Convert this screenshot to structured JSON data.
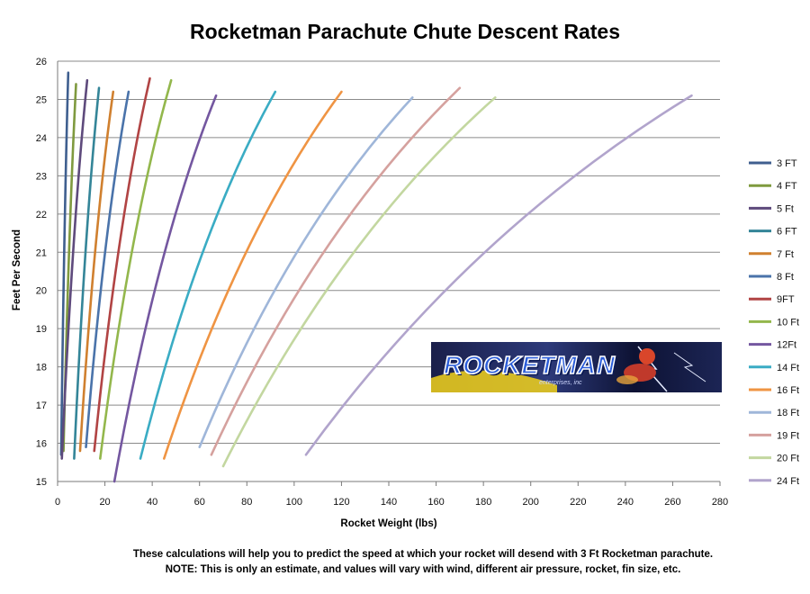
{
  "chart_data": {
    "type": "line",
    "title": "Rocketman Parachute Chute Descent Rates",
    "xlabel": "Rocket Weight (lbs)",
    "ylabel": "Feet Per Second",
    "xlim": [
      0,
      280
    ],
    "ylim": [
      15,
      26
    ],
    "xticks": [
      0,
      20,
      40,
      60,
      80,
      100,
      120,
      140,
      160,
      180,
      200,
      220,
      240,
      260,
      280
    ],
    "yticks": [
      15,
      16,
      17,
      18,
      19,
      20,
      21,
      22,
      23,
      24,
      25,
      26
    ],
    "grid": "horizontal",
    "legend_position": "right",
    "series": [
      {
        "name": "3 FT",
        "color": "#3f5f8f",
        "x": [
          1.5,
          4.5
        ],
        "y": [
          15.7,
          25.7
        ]
      },
      {
        "name": "4 FT",
        "color": "#7f9a3f",
        "x": [
          2.5,
          7.8
        ],
        "y": [
          15.8,
          25.4
        ]
      },
      {
        "name": "5 Ft",
        "color": "#5e4a7c",
        "x": [
          1.8,
          12.5
        ],
        "y": [
          15.6,
          25.5
        ]
      },
      {
        "name": "6 FT",
        "color": "#348598",
        "x": [
          7,
          17.5
        ],
        "y": [
          15.6,
          25.3
        ]
      },
      {
        "name": "7 Ft",
        "color": "#d0802f",
        "x": [
          9.5,
          23.5
        ],
        "y": [
          15.8,
          25.2
        ]
      },
      {
        "name": "8 Ft",
        "color": "#4a73aa",
        "x": [
          12,
          30
        ],
        "y": [
          15.9,
          25.2
        ]
      },
      {
        "name": "9FT",
        "color": "#b14444",
        "x": [
          15.5,
          39
        ],
        "y": [
          15.8,
          25.55
        ]
      },
      {
        "name": "10 Ft",
        "color": "#93b74c",
        "x": [
          18,
          48
        ],
        "y": [
          15.6,
          25.5
        ]
      },
      {
        "name": "12Ft",
        "color": "#7457a0",
        "x": [
          24,
          67
        ],
        "y": [
          15.0,
          25.1
        ]
      },
      {
        "name": "14 Ft",
        "color": "#3aacc4",
        "x": [
          35,
          92
        ],
        "y": [
          15.6,
          25.2
        ]
      },
      {
        "name": "16 Ft",
        "color": "#ef9443",
        "x": [
          45,
          120
        ],
        "y": [
          15.6,
          25.2
        ]
      },
      {
        "name": "18 Ft",
        "color": "#9fb6d9",
        "x": [
          60,
          150
        ],
        "y": [
          15.9,
          25.05
        ]
      },
      {
        "name": "19 Ft",
        "color": "#d5a19e",
        "x": [
          65,
          170
        ],
        "y": [
          15.7,
          25.3
        ]
      },
      {
        "name": "20 Ft",
        "color": "#c3d7a0",
        "x": [
          70,
          185
        ],
        "y": [
          15.4,
          25.05
        ]
      },
      {
        "name": "24 Ft",
        "color": "#b1a4cc",
        "x": [
          105,
          268
        ],
        "y": [
          15.7,
          25.1
        ]
      }
    ]
  },
  "logo": {
    "text": "ROCKETMAN",
    "subtext": "enterprises, inc"
  },
  "footnote": {
    "line1": "These calculations will help you to predict the speed at which your rocket will desend with 3 Ft Rocketman parachute.",
    "line2": "NOTE: This is only an estimate, and values will vary with wind, different air pressure, rocket, fin size, etc."
  }
}
